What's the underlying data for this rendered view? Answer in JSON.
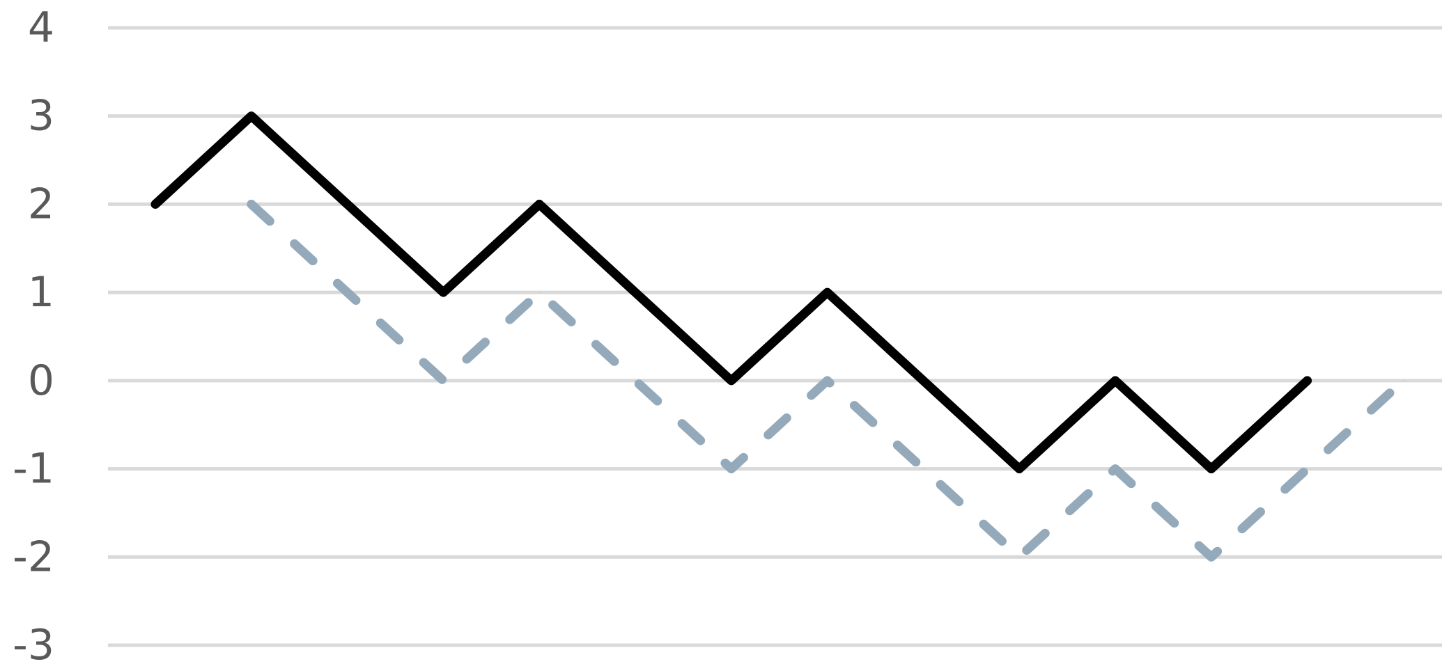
{
  "chart_data": {
    "type": "line",
    "title": "",
    "xlabel": "",
    "ylabel": "",
    "ylim": [
      -3,
      4
    ],
    "yticks": [
      -3,
      -2,
      -1,
      0,
      1,
      2,
      3,
      4
    ],
    "y_tick_labels": [
      "-3",
      "-2",
      "-1",
      "0",
      "1",
      "2",
      "3",
      "4"
    ],
    "grid": "horizontal",
    "legend": "none",
    "x_tick_labels_shown": false,
    "colors": {
      "gridline": "#d9d9d9",
      "tick_text": "#595959"
    },
    "series": [
      {
        "color": "#000000",
        "line_style": "solid",
        "x": [
          1,
          2,
          3,
          4,
          5,
          6,
          7,
          8,
          9,
          10,
          11,
          12,
          13
        ],
        "values": [
          2,
          3,
          2,
          1,
          2,
          1,
          0,
          1,
          0,
          -1,
          0,
          -1,
          0
        ]
      },
      {
        "color": "#94aabb",
        "line_style": "dashed",
        "x": [
          2,
          3,
          4,
          5,
          6,
          7,
          8,
          9,
          10,
          11,
          12,
          13,
          14
        ],
        "values": [
          2,
          1,
          0,
          1,
          0,
          -1,
          0,
          -1,
          -2,
          -1,
          -2,
          -1,
          0
        ]
      }
    ]
  }
}
